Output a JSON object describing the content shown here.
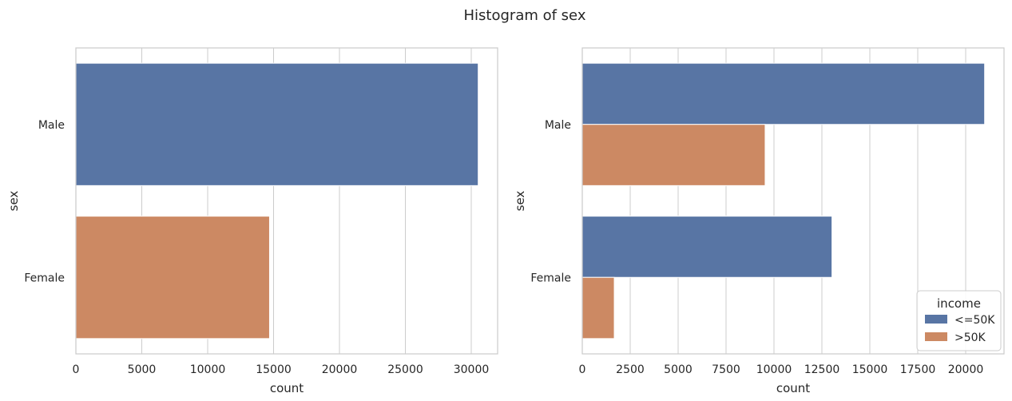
{
  "figure": {
    "title": "Histogram of sex"
  },
  "chart_data": [
    {
      "type": "bar",
      "orientation": "horizontal",
      "title": "",
      "xlabel": "count",
      "ylabel": "sex",
      "categories": [
        "Male",
        "Female"
      ],
      "values": [
        30527,
        14695
      ],
      "bar_colors": [
        "#5875a4",
        "#cc8963"
      ],
      "xlim": [
        0,
        32000
      ],
      "xticks": [
        0,
        5000,
        10000,
        15000,
        20000,
        25000,
        30000
      ],
      "xtick_labels": [
        "0",
        "5000",
        "10000",
        "15000",
        "20000",
        "25000",
        "30000"
      ],
      "grid": true
    },
    {
      "type": "bar",
      "orientation": "horizontal",
      "grouped": true,
      "title": "",
      "xlabel": "count",
      "ylabel": "sex",
      "categories": [
        "Male",
        "Female"
      ],
      "series": [
        {
          "name": "<=50K",
          "values": [
            20988,
            13026
          ],
          "color": "#5875a4"
        },
        {
          "name": ">50K",
          "values": [
            9539,
            1669
          ],
          "color": "#cc8963"
        }
      ],
      "xlim": [
        0,
        22000
      ],
      "xticks": [
        0,
        2500,
        5000,
        7500,
        10000,
        12500,
        15000,
        17500,
        20000
      ],
      "xtick_labels": [
        "0",
        "2500",
        "5000",
        "7500",
        "10000",
        "12500",
        "15000",
        "17500",
        "20000"
      ],
      "legend": {
        "title": "income",
        "placement": "lower-right"
      },
      "grid": true
    }
  ]
}
